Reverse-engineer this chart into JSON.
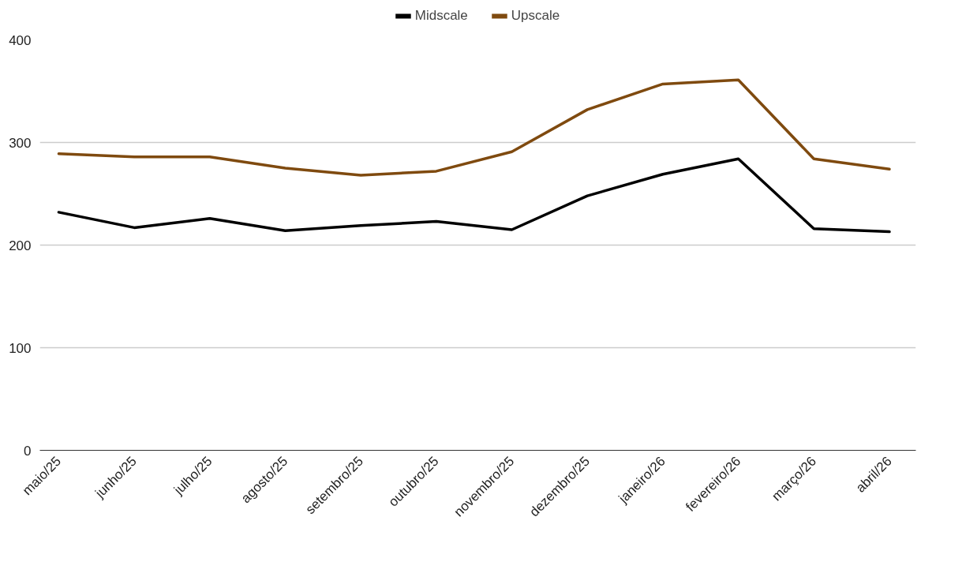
{
  "chart_data": {
    "type": "line",
    "categories": [
      "maio/25",
      "junho/25",
      "julho/25",
      "agosto/25",
      "setembro/25",
      "outubro/25",
      "novembro/25",
      "dezembro/25",
      "janeiro/26",
      "fevereiro/26",
      "março/26",
      "abril/26"
    ],
    "series": [
      {
        "name": "Midscale",
        "color": "#000000",
        "values": [
          232,
          217,
          226,
          214,
          219,
          223,
          215,
          248,
          269,
          284,
          216,
          213
        ]
      },
      {
        "name": "Upscale",
        "color": "#7f4a0f",
        "values": [
          289,
          286,
          286,
          275,
          268,
          272,
          291,
          332,
          357,
          361,
          284,
          274
        ]
      }
    ],
    "ylim": [
      0,
      400
    ],
    "yticks": [
      0,
      100,
      200,
      300,
      400
    ],
    "grid": "y",
    "legend": "top",
    "marker": "none",
    "line_style": "solid"
  }
}
